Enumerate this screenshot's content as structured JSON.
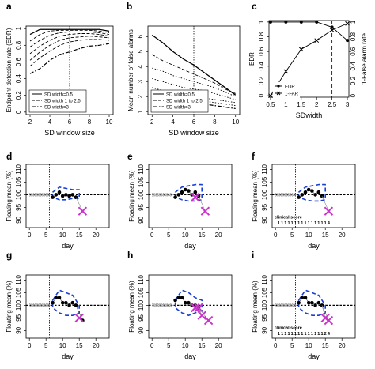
{
  "chart_data": [
    {
      "panel": "a",
      "type": "line",
      "xlabel": "SD window size",
      "ylabel": "Endpoint detection rate (EDR)",
      "xlim": [
        1.6,
        10.4
      ],
      "ylim": [
        -0.03,
        1.03
      ],
      "xticks": [
        2,
        4,
        6,
        8,
        10
      ],
      "yticks": [
        0,
        0.2,
        0.4,
        0.6,
        0.8,
        1
      ],
      "vline": 6,
      "legend": [
        "SD width=0.5",
        "SD width 1 to 2.5",
        "SD width=3"
      ],
      "series": [
        {
          "name": "SD width=0.5",
          "style": "solid",
          "x": [
            2,
            3,
            4,
            5,
            6,
            7,
            8,
            9,
            10
          ],
          "values": [
            0.93,
            0.99,
            0.99,
            0.99,
            0.99,
            0.99,
            0.99,
            0.99,
            0.97
          ]
        },
        {
          "style": "dash",
          "x": [
            2,
            3,
            4,
            5,
            6,
            7,
            8,
            9,
            10
          ],
          "values": [
            0.85,
            0.93,
            0.97,
            0.98,
            0.98,
            0.98,
            0.98,
            0.97,
            0.95
          ]
        },
        {
          "style": "dash",
          "x": [
            2,
            3,
            4,
            5,
            6,
            7,
            8,
            9,
            10
          ],
          "values": [
            0.78,
            0.86,
            0.92,
            0.95,
            0.96,
            0.96,
            0.96,
            0.95,
            0.93
          ]
        },
        {
          "style": "dash",
          "x": [
            2,
            3,
            4,
            5,
            6,
            7,
            8,
            9,
            10
          ],
          "values": [
            0.7,
            0.79,
            0.86,
            0.91,
            0.93,
            0.94,
            0.94,
            0.93,
            0.91
          ]
        },
        {
          "style": "dash",
          "x": [
            2,
            3,
            4,
            5,
            6,
            7,
            8,
            9,
            10
          ],
          "values": [
            0.62,
            0.72,
            0.8,
            0.86,
            0.89,
            0.9,
            0.91,
            0.9,
            0.89
          ]
        },
        {
          "style": "dash",
          "x": [
            2,
            3,
            4,
            5,
            6,
            7,
            8,
            9,
            10
          ],
          "values": [
            0.55,
            0.65,
            0.73,
            0.8,
            0.84,
            0.86,
            0.87,
            0.87,
            0.86
          ]
        },
        {
          "name": "SD width=3",
          "style": "dashdot",
          "x": [
            2,
            3,
            4,
            5,
            6,
            7,
            8,
            9,
            10
          ],
          "values": [
            0.46,
            0.52,
            0.62,
            0.69,
            0.72,
            0.76,
            0.79,
            0.8,
            0.82
          ]
        }
      ]
    },
    {
      "panel": "b",
      "type": "line",
      "xlabel": "SD window size",
      "ylabel": "Mean number of false alarms",
      "xlim": [
        1.6,
        10.4
      ],
      "ylim": [
        0.8,
        6.7
      ],
      "xticks": [
        2,
        4,
        6,
        8,
        10
      ],
      "yticks": [
        1,
        2,
        3,
        4,
        5,
        6
      ],
      "vline": 6,
      "legend": [
        "SD width=0.5",
        "SD width 1 to 2.5",
        "SD width=3"
      ],
      "series": [
        {
          "name": "SD width=0.5",
          "style": "solid",
          "x": [
            2,
            3,
            4,
            5,
            6,
            7,
            8,
            9,
            10
          ],
          "values": [
            6.1,
            5.6,
            5.0,
            4.5,
            4.1,
            3.6,
            3.1,
            2.6,
            2.1
          ]
        },
        {
          "style": "dash",
          "x": [
            2,
            3,
            4,
            5,
            6,
            7,
            8,
            9,
            10
          ],
          "values": [
            4.8,
            4.4,
            4.1,
            3.8,
            3.5,
            3.2,
            2.9,
            2.5,
            2.2
          ]
        },
        {
          "style": "dot",
          "x": [
            2,
            3,
            4,
            5,
            6,
            7,
            8,
            9,
            10
          ],
          "values": [
            3.9,
            3.7,
            3.4,
            3.2,
            3.0,
            2.8,
            2.6,
            2.3,
            2.0
          ]
        },
        {
          "style": "dot",
          "x": [
            2,
            3,
            4,
            5,
            6,
            7,
            8,
            9,
            10
          ],
          "values": [
            3.2,
            3.0,
            2.8,
            2.6,
            2.5,
            2.4,
            2.2,
            2.0,
            1.8
          ]
        },
        {
          "style": "dot",
          "x": [
            2,
            3,
            4,
            5,
            6,
            7,
            8,
            9,
            10
          ],
          "values": [
            2.6,
            2.4,
            2.2,
            2.1,
            2.0,
            1.9,
            1.8,
            1.7,
            1.6
          ]
        },
        {
          "style": "dot",
          "x": [
            2,
            3,
            4,
            5,
            6,
            7,
            8,
            9,
            10
          ],
          "values": [
            2.2,
            2.1,
            1.9,
            1.8,
            1.8,
            1.7,
            1.6,
            1.5,
            1.4
          ]
        },
        {
          "name": "SD width=3",
          "style": "dashdot",
          "x": [
            2,
            3,
            4,
            5,
            6,
            7,
            8,
            9,
            10
          ],
          "values": [
            1.9,
            1.8,
            1.7,
            1.5,
            1.6,
            1.5,
            1.4,
            1.3,
            1.2
          ]
        }
      ]
    },
    {
      "panel": "c",
      "type": "line",
      "xlabel": "SDwidth",
      "ylabel": "EDR",
      "ylabel_right": "1-False alarm rate",
      "xlim": [
        0.45,
        3.05
      ],
      "ylim": [
        -0.02,
        1.02
      ],
      "xticks": [
        0.5,
        1,
        1.5,
        2,
        2.5,
        3
      ],
      "yticks": [
        0,
        0.2,
        0.4,
        0.6,
        0.8,
        1
      ],
      "vline": 2.5,
      "legend": [
        "EDR",
        "1-FAR"
      ],
      "series": [
        {
          "name": "EDR",
          "marker": "circle",
          "x": [
            0.5,
            1,
            1.5,
            2,
            2.5,
            3
          ],
          "values": [
            1,
            1,
            1,
            1,
            0.93,
            0.75
          ]
        },
        {
          "name": "1-FAR",
          "marker": "x",
          "x": [
            0.5,
            1,
            1.5,
            2,
            2.5,
            3
          ],
          "values": [
            0.0,
            0.33,
            0.63,
            0.75,
            0.89,
            0.98
          ]
        }
      ]
    },
    {
      "panel": "d",
      "type": "scatter",
      "xlabel": "day",
      "ylabel": "Floating mean (%)",
      "xlim": [
        -1,
        24
      ],
      "ylim": [
        87,
        112
      ],
      "xticks": [
        0,
        5,
        10,
        15,
        20
      ],
      "yticks": [
        90,
        95,
        100,
        105,
        110
      ],
      "vline": 6,
      "hline": 100,
      "arrows_to": 6,
      "points": {
        "x": [
          7,
          8,
          9,
          10,
          11,
          12,
          13,
          14
        ],
        "values": [
          99,
          100,
          101,
          99.5,
          100,
          99.5,
          100,
          99
        ]
      },
      "band": {
        "x": [
          7,
          9,
          11,
          13,
          15
        ],
        "upper": [
          101,
          103,
          102.5,
          102,
          102
        ],
        "lower": [
          99,
          98,
          98,
          98.5,
          98.5
        ]
      },
      "alarms": [
        {
          "x": 16,
          "value": 93.5
        }
      ],
      "clinical_score": null
    },
    {
      "panel": "e",
      "type": "scatter",
      "xlabel": "day",
      "ylabel": "Floating mean (%)",
      "xlim": [
        -1,
        24
      ],
      "ylim": [
        87,
        112
      ],
      "xticks": [
        0,
        5,
        10,
        15,
        20
      ],
      "yticks": [
        90,
        95,
        100,
        105,
        110
      ],
      "vline": 6,
      "hline": 100,
      "arrows_to": 6,
      "points": {
        "x": [
          7,
          8,
          9,
          10,
          11,
          12,
          13,
          14
        ],
        "values": [
          99,
          100,
          101,
          102,
          101.5,
          100,
          101,
          99.5
        ]
      },
      "band": {
        "x": [
          7,
          9,
          11,
          13,
          15
        ],
        "upper": [
          101,
          103,
          103.5,
          104,
          104
        ],
        "lower": [
          99,
          98,
          97.5,
          97.5,
          98
        ]
      },
      "alarms": [
        {
          "x": 13,
          "value": 99
        },
        {
          "x": 16,
          "value": 93.5
        }
      ],
      "clinical_score": null
    },
    {
      "panel": "f",
      "type": "scatter",
      "xlabel": "day",
      "ylabel": "Floating mean (%)",
      "xlim": [
        -1,
        24
      ],
      "ylim": [
        87,
        112
      ],
      "xticks": [
        0,
        5,
        10,
        15,
        20
      ],
      "yticks": [
        90,
        95,
        100,
        105,
        110
      ],
      "vline": 6,
      "hline": 100,
      "arrows_to": 6,
      "points": {
        "x": [
          7,
          8,
          9,
          10,
          11,
          12,
          13,
          14
        ],
        "values": [
          99,
          100,
          101,
          102,
          101.5,
          100,
          101,
          99.5
        ]
      },
      "band": {
        "x": [
          7,
          9,
          11,
          13,
          15
        ],
        "upper": [
          101,
          103,
          103.5,
          104,
          104
        ],
        "lower": [
          99,
          98,
          97.5,
          97.5,
          98
        ]
      },
      "alarms": [
        {
          "x": 16,
          "value": 93.5
        }
      ],
      "clinical_score": {
        "label": "clinical score",
        "x": [
          1,
          2,
          3,
          4,
          5,
          6,
          7,
          8,
          9,
          10,
          11,
          12,
          13,
          14,
          15,
          16
        ],
        "values": [
          "1",
          "1",
          "1",
          "1",
          "1",
          "1",
          "1",
          "1",
          "1",
          "1",
          "1",
          "1",
          "1",
          "1",
          "1",
          "4"
        ]
      }
    },
    {
      "panel": "g",
      "type": "scatter",
      "xlabel": "day",
      "ylabel": "Floating mean (%)",
      "xlim": [
        -1,
        24
      ],
      "ylim": [
        87,
        112
      ],
      "xticks": [
        0,
        5,
        10,
        15,
        20
      ],
      "yticks": [
        90,
        95,
        100,
        105,
        110
      ],
      "vline": 6,
      "hline": 100,
      "arrows_to": 6,
      "points": {
        "x": [
          7,
          8,
          9,
          10,
          11,
          12,
          13,
          14,
          16
        ],
        "values": [
          101,
          103,
          103,
          101,
          101,
          100,
          101,
          100,
          94
        ]
      },
      "band": {
        "x": [
          7,
          9,
          11,
          13,
          15
        ],
        "upper": [
          102,
          106,
          105,
          104,
          100
        ],
        "lower": [
          99,
          97,
          96,
          96,
          97
        ]
      },
      "alarms": [
        {
          "x": 15,
          "value": 95
        }
      ],
      "clinical_score": null
    },
    {
      "panel": "h",
      "type": "scatter",
      "xlabel": "day",
      "ylabel": "Floating mean (%)",
      "xlim": [
        -1,
        24
      ],
      "ylim": [
        87,
        112
      ],
      "xticks": [
        0,
        5,
        10,
        15,
        20
      ],
      "yticks": [
        90,
        95,
        100,
        105,
        110
      ],
      "vline": 6,
      "hline": 100,
      "arrows_to": 6,
      "points": {
        "x": [
          7,
          8,
          9,
          10,
          11,
          12,
          13,
          14
        ],
        "values": [
          102,
          103,
          103,
          101,
          101,
          100,
          100,
          99
        ]
      },
      "band": {
        "x": [
          7,
          9,
          11,
          13,
          15
        ],
        "upper": [
          102,
          106,
          105,
          103,
          102
        ],
        "lower": [
          99,
          97,
          96,
          97,
          98
        ]
      },
      "alarms": [
        {
          "x": 13,
          "value": 99
        },
        {
          "x": 14,
          "value": 99
        },
        {
          "x": 15,
          "value": 96
        },
        {
          "x": 17,
          "value": 94
        }
      ],
      "clinical_score": null
    },
    {
      "panel": "i",
      "type": "scatter",
      "xlabel": "day",
      "ylabel": "Floating mean (%)",
      "xlim": [
        -1,
        24
      ],
      "ylim": [
        87,
        112
      ],
      "xticks": [
        0,
        5,
        10,
        15,
        20
      ],
      "yticks": [
        90,
        95,
        100,
        105,
        110
      ],
      "vline": 6,
      "hline": 100,
      "arrows_to": 6,
      "points": {
        "x": [
          7,
          8,
          9,
          10,
          11,
          12,
          13,
          14
        ],
        "values": [
          101,
          103,
          103,
          101,
          101,
          100,
          101,
          100
        ]
      },
      "band": {
        "x": [
          7,
          9,
          11,
          13,
          15
        ],
        "upper": [
          102,
          106,
          105,
          104,
          100
        ],
        "lower": [
          99,
          97,
          96,
          96,
          97
        ]
      },
      "alarms": [
        {
          "x": 15,
          "value": 95
        },
        {
          "x": 16,
          "value": 94
        }
      ],
      "clinical_score": {
        "label": "clinical score",
        "x": [
          1,
          2,
          3,
          4,
          5,
          6,
          7,
          8,
          9,
          10,
          11,
          12,
          13,
          14,
          15,
          16
        ],
        "values": [
          "1",
          "1",
          "1",
          "1",
          "1",
          "1",
          "1",
          "1",
          "1",
          "1",
          "1",
          "1",
          "1",
          "1",
          "2",
          "4"
        ]
      }
    }
  ],
  "colors": {
    "band": "#1a3fd6",
    "alarm": "#cc33cc",
    "arrow": "#999999"
  }
}
